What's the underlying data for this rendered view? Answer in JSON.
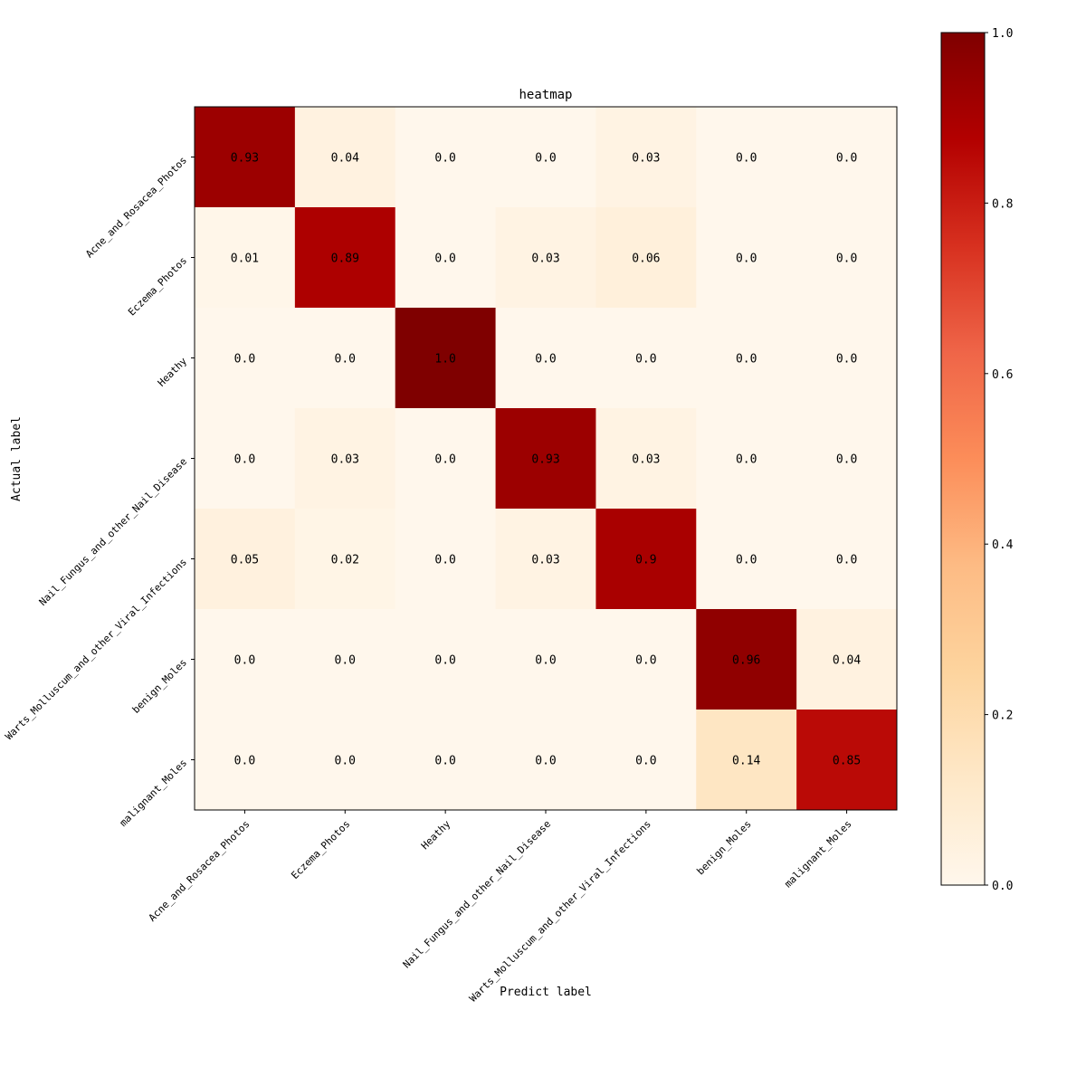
{
  "chart_data": {
    "type": "heatmap",
    "title": "heatmap",
    "xlabel": "Predict label",
    "ylabel": "Actual label",
    "rows": [
      "Acne_and_Rosacea_Photos",
      "Eczema_Photos",
      "Heathy",
      "Nail_Fungus_and_other_Nail_Disease",
      "Warts_Molluscum_and_other_Viral_Infections",
      "benign_Moles",
      "malignant_Moles"
    ],
    "columns": [
      "Acne_and_Rosacea_Photos",
      "Eczema_Photos",
      "Heathy",
      "Nail_Fungus_and_other_Nail_Disease",
      "Warts_Molluscum_and_other_Viral_Infections",
      "benign_Moles",
      "malignant_Moles"
    ],
    "values": [
      [
        0.93,
        0.04,
        0.0,
        0.0,
        0.03,
        0.0,
        0.0
      ],
      [
        0.01,
        0.89,
        0.0,
        0.03,
        0.06,
        0.0,
        0.0
      ],
      [
        0.0,
        0.0,
        1.0,
        0.0,
        0.0,
        0.0,
        0.0
      ],
      [
        0.0,
        0.03,
        0.0,
        0.93,
        0.03,
        0.0,
        0.0
      ],
      [
        0.05,
        0.02,
        0.0,
        0.03,
        0.9,
        0.0,
        0.0
      ],
      [
        0.0,
        0.0,
        0.0,
        0.0,
        0.0,
        0.96,
        0.04
      ],
      [
        0.0,
        0.0,
        0.0,
        0.0,
        0.0,
        0.14,
        0.85
      ]
    ],
    "value_labels": [
      [
        "0.93",
        "0.04",
        "0.0",
        "0.0",
        "0.03",
        "0.0",
        "0.0"
      ],
      [
        "0.01",
        "0.89",
        "0.0",
        "0.03",
        "0.06",
        "0.0",
        "0.0"
      ],
      [
        "0.0",
        "0.0",
        "1.0",
        "0.0",
        "0.0",
        "0.0",
        "0.0"
      ],
      [
        "0.0",
        "0.03",
        "0.0",
        "0.93",
        "0.03",
        "0.0",
        "0.0"
      ],
      [
        "0.05",
        "0.02",
        "0.0",
        "0.03",
        "0.9",
        "0.0",
        "0.0"
      ],
      [
        "0.0",
        "0.0",
        "0.0",
        "0.0",
        "0.0",
        "0.96",
        "0.04"
      ],
      [
        "0.0",
        "0.0",
        "0.0",
        "0.0",
        "0.0",
        "0.14",
        "0.85"
      ]
    ],
    "colormap": "OrRd",
    "colormap_stops": [
      "#fff7ec",
      "#fee8c8",
      "#fdd49e",
      "#fdbb84",
      "#fc8d59",
      "#ef6548",
      "#d7301f",
      "#b30000",
      "#7f0000"
    ],
    "colorbar": {
      "range": [
        0.0,
        1.0
      ],
      "ticks": [
        0.0,
        0.2,
        0.4,
        0.6,
        0.8,
        1.0
      ],
      "tick_labels": [
        "0.0",
        "0.2",
        "0.4",
        "0.6",
        "0.8",
        "1.0"
      ]
    },
    "grid": false
  }
}
